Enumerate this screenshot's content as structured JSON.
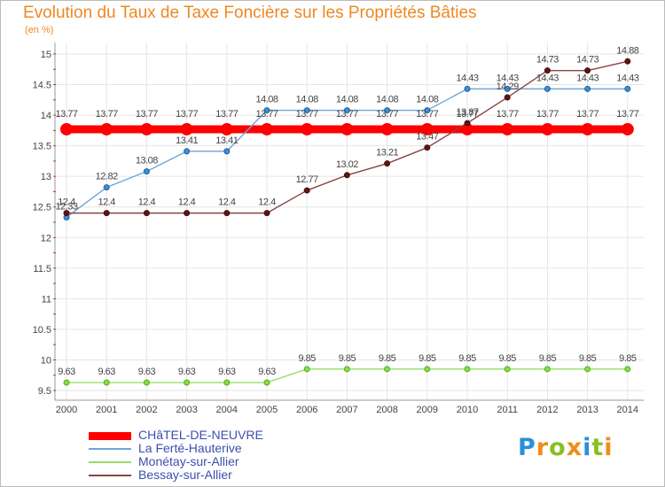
{
  "title": "Evolution du Taux de Taxe Foncière sur les Propriétés Bâties",
  "unit_label": "(en %)",
  "logo": {
    "text": "Proxiti",
    "letters": [
      "P",
      "r",
      "o",
      "x",
      "i",
      "t",
      "i"
    ],
    "colors": [
      "#2b8fd8",
      "#f08c1e",
      "#88c020",
      "#f08c1e",
      "#2b8fd8",
      "#88c020",
      "#f08c1e"
    ]
  },
  "chart_data": {
    "type": "line",
    "title": "Evolution du Taux de Taxe Foncière sur les Propriétés Bâties",
    "ylabel": "(en %)",
    "xlabel": "",
    "ylim": [
      9.5,
      15
    ],
    "yticks": [
      "9.5",
      "10",
      "10.5",
      "11",
      "11.5",
      "12",
      "12.5",
      "13",
      "13.5",
      "14",
      "14.5",
      "15"
    ],
    "x": [
      "2000",
      "2001",
      "2002",
      "2003",
      "2004",
      "2005",
      "2006",
      "2007",
      "2008",
      "2009",
      "2010",
      "2011",
      "2012",
      "2013",
      "2014"
    ],
    "series": [
      {
        "name": "CHâTEL-DE-NEUVRE",
        "color": "#ff0000",
        "values": [
          13.77,
          13.77,
          13.77,
          13.77,
          13.77,
          13.77,
          13.77,
          13.77,
          13.77,
          13.77,
          13.77,
          13.77,
          13.77,
          13.77,
          13.77
        ],
        "labels": [
          "13.77",
          "13.77",
          "13.77",
          "13.77",
          "13.77",
          "13.77",
          "13.77",
          "13.77",
          "13.77",
          "13.77",
          "13.77",
          "13.77",
          "13.77",
          "13.77",
          "13.77"
        ]
      },
      {
        "name": "La Ferté-Hauterive",
        "color": "#6fa6d6",
        "values": [
          12.33,
          12.82,
          13.08,
          13.41,
          13.41,
          14.08,
          14.08,
          14.08,
          14.08,
          14.08,
          14.43,
          14.43,
          14.43,
          14.43,
          14.43
        ],
        "labels": [
          "12.33",
          "12.82",
          "13.08",
          "13.41",
          "13.41",
          "14.08",
          "14.08",
          "14.08",
          "14.08",
          "14.08",
          "14.43",
          "14.43",
          "14.43",
          "14.43",
          "14.43"
        ]
      },
      {
        "name": "Monétay-sur-Allier",
        "color": "#99dd66",
        "values": [
          9.63,
          9.63,
          9.63,
          9.63,
          9.63,
          9.63,
          9.85,
          9.85,
          9.85,
          9.85,
          9.85,
          9.85,
          9.85,
          9.85,
          9.85
        ],
        "labels": [
          "9.63",
          "9.63",
          "9.63",
          "9.63",
          "9.63",
          "9.63",
          "9.85",
          "9.85",
          "9.85",
          "9.85",
          "9.85",
          "9.85",
          "9.85",
          "9.85",
          "9.85"
        ]
      },
      {
        "name": "Bessay-sur-Allier",
        "color": "#884444",
        "values": [
          12.4,
          12.4,
          12.4,
          12.4,
          12.4,
          12.4,
          12.77,
          13.02,
          13.21,
          13.47,
          13.87,
          14.29,
          14.73,
          14.73,
          14.88
        ],
        "labels": [
          "12.4",
          "12.4",
          "12.4",
          "12.4",
          "12.4",
          "12.4",
          "12.77",
          "13.02",
          "13.21",
          "13.47",
          "13.87",
          "14.29",
          "14.73",
          "14.73",
          "14.88"
        ]
      }
    ]
  }
}
